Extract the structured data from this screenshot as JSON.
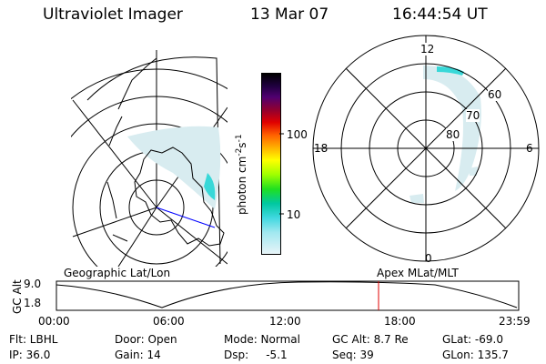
{
  "header": {
    "instrument": "Ultraviolet Imager",
    "date": "13 Mar 07",
    "time": "16:44:54 UT"
  },
  "colorbar": {
    "ticks": [
      "100",
      "10"
    ],
    "unit_main": "photon cm",
    "unit_exp1": "-2",
    "unit_mid": "s",
    "unit_exp2": "-1"
  },
  "polar_plot": {
    "mlt_labels": {
      "top": "12",
      "left": "18",
      "right": "6",
      "bottom": "0"
    },
    "lat_labels": [
      "60",
      "70",
      "80"
    ]
  },
  "captions": {
    "geographic": "Geographic Lat/Lon",
    "apex": "Apex MLat/MLT"
  },
  "altitude_plot": {
    "ylabel": "GC Alt",
    "yticks": [
      "9.0",
      "1.8"
    ],
    "xticks": [
      "00:00",
      "06:00",
      "12:00",
      "18:00",
      "23:59"
    ]
  },
  "info": {
    "row1": {
      "filter": "Flt: LBHL",
      "door": "Door: Open",
      "mode": "Mode: Normal",
      "gc_alt": "GC Alt: 8.7 Re",
      "glat": "GLat: -69.0"
    },
    "row2": {
      "ip": "IP: 36.0",
      "gain": "Gain: 14",
      "dsp": "Dsp:     -5.1",
      "seq": "Seq: 39",
      "glon": "GLon: 135.7"
    }
  },
  "colors": {
    "aurora_light": "#d8ecf0",
    "aurora_cyan": "#38d8d8",
    "orbit_marker": "#e00000",
    "projection_line": "#0000ff"
  }
}
